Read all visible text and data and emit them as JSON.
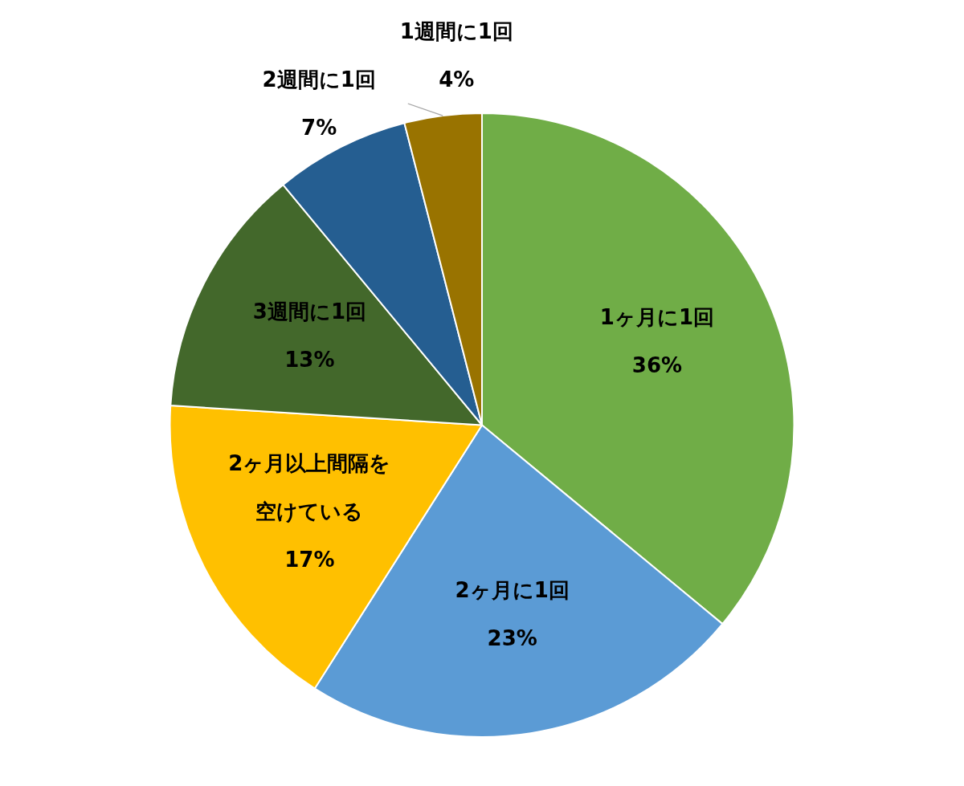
{
  "chart_data": {
    "type": "pie",
    "categories": [
      "1ヶ月に1回",
      "2ヶ月に1回",
      "2ヶ月以上間隔を空けている",
      "3週間に1回",
      "2週間に1回",
      "1週間に1回"
    ],
    "values": [
      36,
      23,
      17,
      13,
      7,
      4
    ],
    "value_labels": [
      "36%",
      "23%",
      "17%",
      "13%",
      "7%",
      "4%"
    ],
    "colors": [
      "#70ad47",
      "#5b9bd5",
      "#ffc000",
      "#43682b",
      "#255e91",
      "#997300"
    ],
    "legend": false
  }
}
